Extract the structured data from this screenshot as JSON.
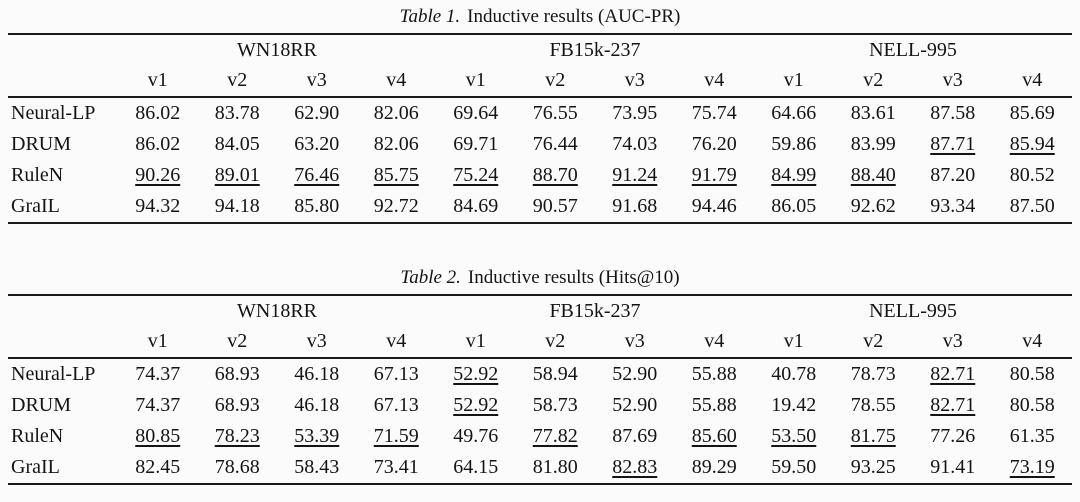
{
  "page": {
    "background_color": "#fbfbfb",
    "text_color": "#141414",
    "rule_color": "#1a1a1a"
  },
  "tables": [
    {
      "caption": {
        "label": "Table 1.",
        "text": "Inductive results (AUC-PR)"
      },
      "column_groups": [
        {
          "name": "WN18RR",
          "subcolumns": [
            "v1",
            "v2",
            "v3",
            "v4"
          ]
        },
        {
          "name": "FB15k-237",
          "subcolumns": [
            "v1",
            "v2",
            "v3",
            "v4"
          ]
        },
        {
          "name": "NELL-995",
          "subcolumns": [
            "v1",
            "v2",
            "v3",
            "v4"
          ]
        }
      ],
      "rows": [
        {
          "method": "Neural-LP",
          "values": [
            "86.02",
            "83.78",
            "62.90",
            "82.06",
            "69.64",
            "76.55",
            "73.95",
            "75.74",
            "64.66",
            "83.61",
            "87.58",
            "85.69"
          ],
          "styles": [
            "",
            "",
            "",
            "",
            "",
            "",
            "",
            "",
            "",
            "",
            "",
            ""
          ]
        },
        {
          "method": "DRUM",
          "values": [
            "86.02",
            "84.05",
            "63.20",
            "82.06",
            "69.71",
            "76.44",
            "74.03",
            "76.20",
            "59.86",
            "83.99",
            "87.71",
            "85.94"
          ],
          "styles": [
            "",
            "",
            "",
            "",
            "",
            "",
            "",
            "",
            "",
            "",
            "u",
            "u"
          ]
        },
        {
          "method": "RuleN",
          "values": [
            "90.26",
            "89.01",
            "76.46",
            "85.75",
            "75.24",
            "88.70",
            "91.24",
            "91.79",
            "84.99",
            "88.40",
            "87.20",
            "80.52"
          ],
          "styles": [
            "u",
            "u",
            "u",
            "u",
            "u",
            "u",
            "u",
            "u",
            "u",
            "u",
            "",
            ""
          ]
        },
        {
          "method": "GraIL",
          "values": [
            "94.32",
            "94.18",
            "85.80",
            "92.72",
            "84.69",
            "90.57",
            "91.68",
            "94.46",
            "86.05",
            "92.62",
            "93.34",
            "87.50"
          ],
          "styles": [
            "b",
            "b",
            "b",
            "b",
            "b",
            "b",
            "b",
            "b",
            "b",
            "b",
            "b",
            "b"
          ]
        }
      ]
    },
    {
      "caption": {
        "label": "Table 2.",
        "text": "Inductive results (Hits@10)"
      },
      "column_groups": [
        {
          "name": "WN18RR",
          "subcolumns": [
            "v1",
            "v2",
            "v3",
            "v4"
          ]
        },
        {
          "name": "FB15k-237",
          "subcolumns": [
            "v1",
            "v2",
            "v3",
            "v4"
          ]
        },
        {
          "name": "NELL-995",
          "subcolumns": [
            "v1",
            "v2",
            "v3",
            "v4"
          ]
        }
      ],
      "rows": [
        {
          "method": "Neural-LP",
          "values": [
            "74.37",
            "68.93",
            "46.18",
            "67.13",
            "52.92",
            "58.94",
            "52.90",
            "55.88",
            "40.78",
            "78.73",
            "82.71",
            "80.58"
          ],
          "styles": [
            "",
            "",
            "",
            "",
            "u",
            "",
            "",
            "",
            "",
            "",
            "u",
            "b"
          ]
        },
        {
          "method": "DRUM",
          "values": [
            "74.37",
            "68.93",
            "46.18",
            "67.13",
            "52.92",
            "58.73",
            "52.90",
            "55.88",
            "19.42",
            "78.55",
            "82.71",
            "80.58"
          ],
          "styles": [
            "",
            "",
            "",
            "",
            "u",
            "",
            "",
            "",
            "",
            "",
            "u",
            "b"
          ]
        },
        {
          "method": "RuleN",
          "values": [
            "80.85",
            "78.23",
            "53.39",
            "71.59",
            "49.76",
            "77.82",
            "87.69",
            "85.60",
            "53.50",
            "81.75",
            "77.26",
            "61.35"
          ],
          "styles": [
            "u",
            "u",
            "u",
            "u",
            "",
            "u",
            "b",
            "u",
            "u",
            "u",
            "",
            ""
          ]
        },
        {
          "method": "GraIL",
          "values": [
            "82.45",
            "78.68",
            "58.43",
            "73.41",
            "64.15",
            "81.80",
            "82.83",
            "89.29",
            "59.50",
            "93.25",
            "91.41",
            "73.19"
          ],
          "styles": [
            "b",
            "b",
            "b",
            "b",
            "b",
            "b",
            "u",
            "b",
            "b",
            "b",
            "b",
            "u"
          ]
        }
      ]
    }
  ]
}
